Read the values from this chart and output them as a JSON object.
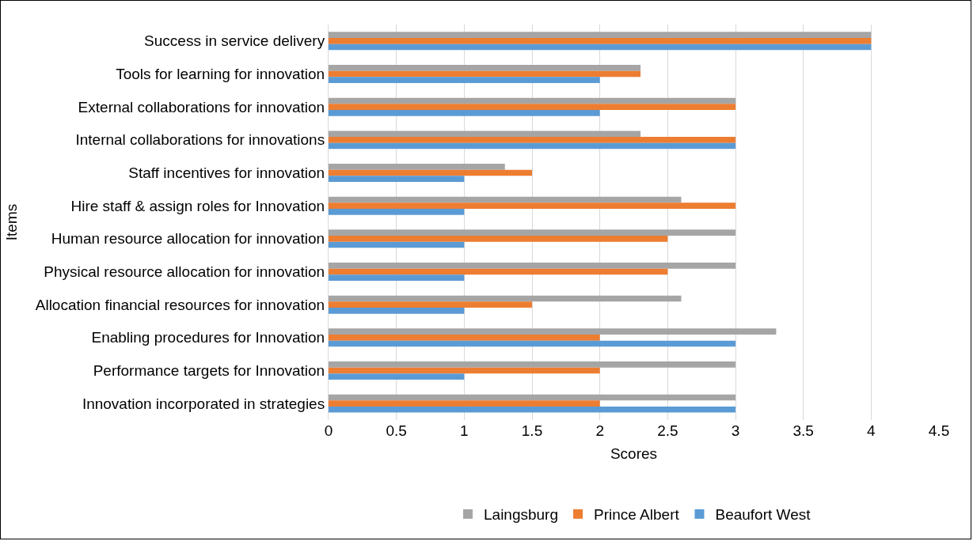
{
  "chart_data": {
    "type": "bar",
    "orientation": "horizontal",
    "xlabel": "Scores",
    "ylabel": "Items",
    "categories": [
      "Success in service delivery",
      "Tools for learning for innovation",
      "External collaborations for innovation",
      "Internal collaborations for innovations",
      "Staff incentives for innovation",
      "Hire staff & assign roles for Innovation",
      "Human resource allocation for innovation",
      "Physical resource allocation for innovation",
      "Allocation financial resources for innovation",
      "Enabling procedures for Innovation",
      "Performance targets for Innovation",
      "Innovation incorporated in strategies"
    ],
    "series": [
      {
        "name": "Laingsburg",
        "color": "#a5a5a5",
        "values": [
          4,
          2.3,
          3,
          2.3,
          1.3,
          2.6,
          3,
          3,
          2.6,
          3.3,
          3,
          3
        ]
      },
      {
        "name": "Prince Albert",
        "color": "#ed7d31",
        "values": [
          4,
          2.3,
          3,
          3,
          1.5,
          3,
          2.5,
          2.5,
          1.5,
          2,
          2,
          2
        ]
      },
      {
        "name": "Beaufort West",
        "color": "#5b9bd5",
        "values": [
          4,
          2,
          2,
          3,
          1,
          1,
          1,
          1,
          1,
          3,
          1,
          3
        ]
      }
    ],
    "xlim": [
      0,
      4.5
    ],
    "xticks": [
      0,
      0.5,
      1,
      1.5,
      2,
      2.5,
      3,
      3.5,
      4,
      4.5
    ],
    "grid": "x",
    "legend": "bottom"
  }
}
